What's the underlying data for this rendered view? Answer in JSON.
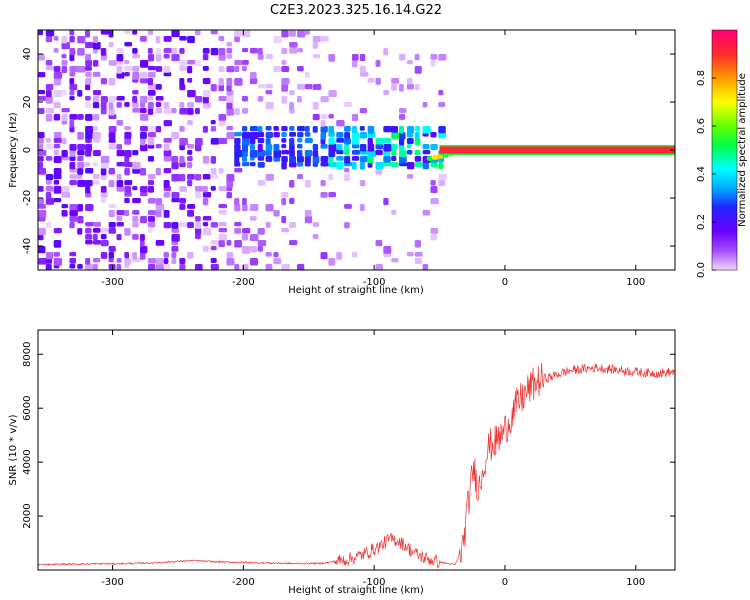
{
  "title": "C2E3.2023.325.16.14.G22",
  "chart_data": [
    {
      "type": "heatmap",
      "xlabel": "Height of straight line (km)",
      "ylabel": "Frequency (Hz)",
      "xlim": [
        -357,
        130
      ],
      "ylim": [
        -50,
        50
      ],
      "xticks": [
        -300,
        -200,
        -100,
        0,
        100
      ],
      "yticks": [
        -40,
        -20,
        0,
        20,
        40
      ],
      "colorbar": {
        "label": "Normalized spectral amplitude",
        "range": [
          0,
          1
        ],
        "ticks": [
          0.0,
          0.2,
          0.4,
          0.6,
          0.8
        ],
        "colormap": [
          "#f0d8ff",
          "#a64dff",
          "#6a00ff",
          "#2222ff",
          "#00aaff",
          "#00ffff",
          "#00ff44",
          "#66ff00",
          "#ffff00",
          "#ff9900",
          "#ff2a2a",
          "#ff0077"
        ]
      },
      "features": {
        "noise_region_x": [
          -357,
          -50
        ],
        "centre_line_x": [
          -50,
          130
        ],
        "centre_line_freq": 0,
        "line_thickness_hz": 3
      }
    },
    {
      "type": "line",
      "xlabel": "Height of straight line (km)",
      "ylabel": "SNR (10 * v/v)",
      "xlim": [
        -357,
        130
      ],
      "ylim": [
        0,
        8900
      ],
      "xticks": [
        -300,
        -200,
        -100,
        0,
        100
      ],
      "yticks": [
        2000,
        4000,
        6000,
        8000
      ],
      "series": [
        {
          "color": "#ee3333",
          "x": [
            -357,
            -330,
            -300,
            -270,
            -240,
            -220,
            -200,
            -180,
            -160,
            -140,
            -125,
            -115,
            -105,
            -95,
            -88,
            -82,
            -76,
            -70,
            -62,
            -55,
            -45,
            -38,
            -32,
            -28,
            -24,
            -20,
            -16,
            -12,
            -8,
            -4,
            0,
            5,
            10,
            15,
            20,
            25,
            30,
            35,
            40,
            50,
            60,
            70,
            80,
            90,
            100,
            110,
            120,
            130
          ],
          "y": [
            200,
            220,
            230,
            260,
            350,
            300,
            280,
            260,
            240,
            250,
            350,
            450,
            650,
            900,
            1150,
            1100,
            900,
            650,
            450,
            350,
            250,
            200,
            900,
            2500,
            3800,
            3000,
            4000,
            4600,
            4700,
            4900,
            5200,
            5700,
            6200,
            6500,
            6800,
            7000,
            7100,
            7150,
            7250,
            7400,
            7450,
            7500,
            7450,
            7400,
            7350,
            7300,
            7300,
            7350
          ]
        }
      ]
    }
  ]
}
